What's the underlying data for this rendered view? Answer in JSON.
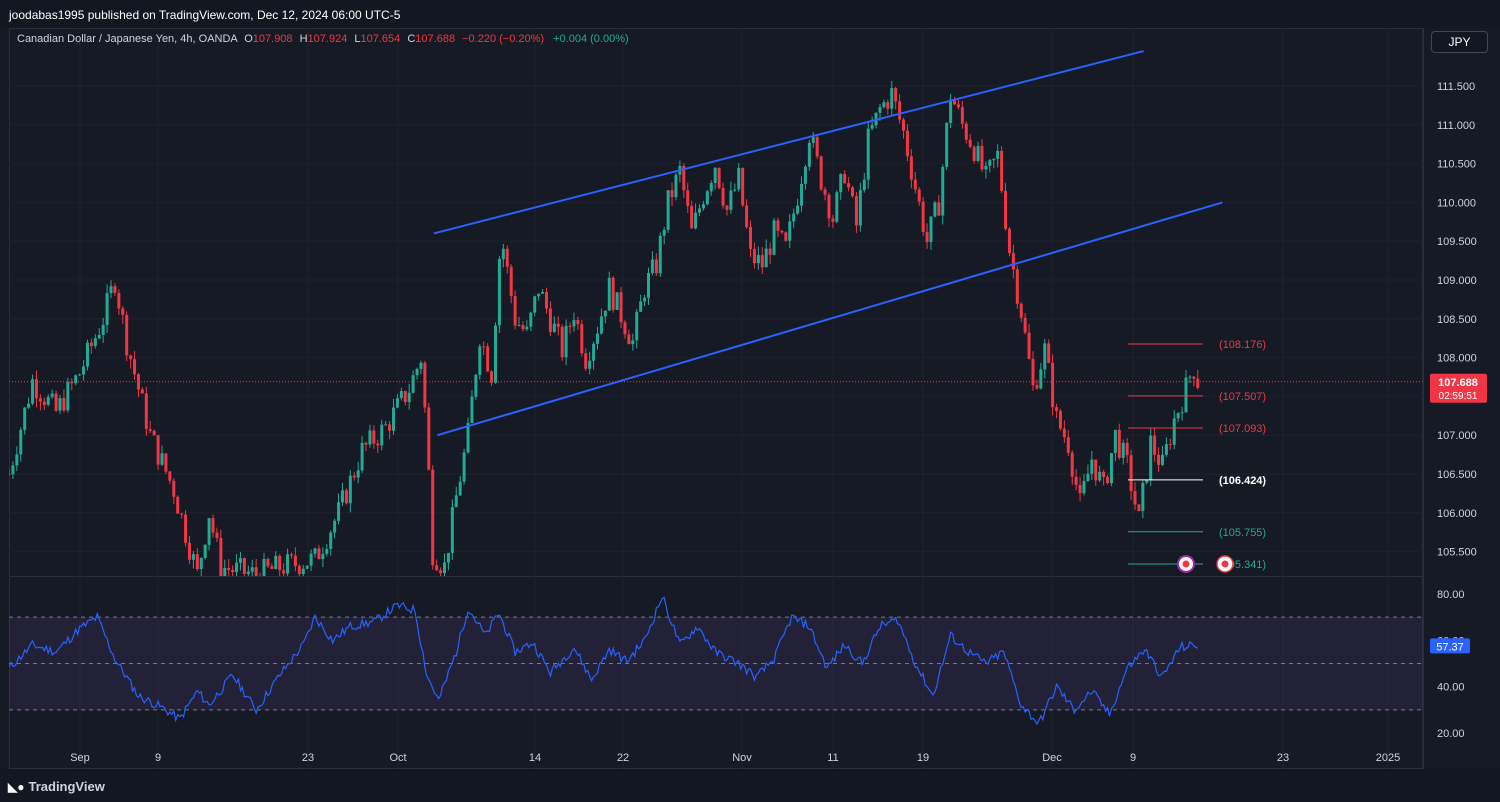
{
  "header": {
    "publisher": "joodabas1995 published on TradingView.com, Dec 12, 2024 06:00 UTC-5"
  },
  "legend": {
    "title": "Canadian Dollar / Japanese Yen, 4h, OANDA",
    "o_label": "O",
    "o_value": "107.908",
    "h_label": "H",
    "h_value": "107.924",
    "l_label": "L",
    "l_value": "107.654",
    "c_label": "C",
    "c_value": "107.688",
    "change": "−0.220 (−0.20%)",
    "extra": "+0.004 (0.00%)"
  },
  "currency_button": "JPY",
  "branding": "TradingView",
  "colors": {
    "bull": "#22ab94",
    "bear": "#f23645",
    "channel": "#2962ff",
    "rsi": "#2962ff",
    "background": "#161a25"
  },
  "chart_data": [
    {
      "type": "candlestick",
      "symbol": "CADJPY",
      "timeframe": "4h",
      "ylim": [
        105.2,
        112.1
      ],
      "price_ticks": [
        "111.500",
        "111.000",
        "110.500",
        "110.000",
        "109.500",
        "109.000",
        "108.500",
        "108.000",
        "107.000",
        "106.500",
        "106.000",
        "105.500"
      ],
      "x_ticks": [
        "Sep",
        "9",
        "23",
        "Oct",
        "14",
        "22",
        "Nov",
        "11",
        "19",
        "Dec",
        "9",
        "23",
        "2025"
      ],
      "last_price": "107.688",
      "countdown": "02:59:51",
      "anchors": [
        {
          "day": 0,
          "price": 106.5
        },
        {
          "day": 2,
          "price": 107.7
        },
        {
          "day": 4,
          "price": 107.3
        },
        {
          "day": 6,
          "price": 107.8
        },
        {
          "day": 8,
          "price": 108.5
        },
        {
          "day": 9,
          "price": 109.0
        },
        {
          "day": 10,
          "price": 108.2
        },
        {
          "day": 11,
          "price": 107.6
        },
        {
          "day": 12,
          "price": 107.0
        },
        {
          "day": 14,
          "price": 106.3
        },
        {
          "day": 16,
          "price": 105.2
        },
        {
          "day": 17,
          "price": 106.0
        },
        {
          "day": 18,
          "price": 105.3
        },
        {
          "day": 21,
          "price": 105.2
        },
        {
          "day": 23,
          "price": 105.3
        },
        {
          "day": 26,
          "price": 105.4
        },
        {
          "day": 28,
          "price": 106.0
        },
        {
          "day": 30,
          "price": 106.8
        },
        {
          "day": 32,
          "price": 107.1
        },
        {
          "day": 34,
          "price": 107.6
        },
        {
          "day": 35,
          "price": 108.0
        },
        {
          "day": 35.5,
          "price": 107.0
        },
        {
          "day": 36,
          "price": 105.5
        },
        {
          "day": 37,
          "price": 105.3
        },
        {
          "day": 38,
          "price": 106.2
        },
        {
          "day": 39,
          "price": 107.0
        },
        {
          "day": 40,
          "price": 108.3
        },
        {
          "day": 41,
          "price": 107.8
        },
        {
          "day": 41.8,
          "price": 109.6
        },
        {
          "day": 43,
          "price": 108.5
        },
        {
          "day": 44,
          "price": 108.3
        },
        {
          "day": 45,
          "price": 108.9
        },
        {
          "day": 47,
          "price": 108.1
        },
        {
          "day": 48,
          "price": 108.6
        },
        {
          "day": 49,
          "price": 108.0
        },
        {
          "day": 50,
          "price": 108.4
        },
        {
          "day": 51,
          "price": 108.9
        },
        {
          "day": 53,
          "price": 108.2
        },
        {
          "day": 54,
          "price": 108.9
        },
        {
          "day": 55,
          "price": 109.2
        },
        {
          "day": 56,
          "price": 110.0
        },
        {
          "day": 57,
          "price": 110.4
        },
        {
          "day": 58,
          "price": 109.6
        },
        {
          "day": 59,
          "price": 110.1
        },
        {
          "day": 60,
          "price": 110.5
        },
        {
          "day": 61,
          "price": 109.9
        },
        {
          "day": 62,
          "price": 110.3
        },
        {
          "day": 63,
          "price": 109.3
        },
        {
          "day": 64,
          "price": 109.2
        },
        {
          "day": 65,
          "price": 109.6
        },
        {
          "day": 66,
          "price": 109.4
        },
        {
          "day": 67,
          "price": 110.1
        },
        {
          "day": 68,
          "price": 110.9
        },
        {
          "day": 69,
          "price": 110.3
        },
        {
          "day": 70,
          "price": 109.8
        },
        {
          "day": 71,
          "price": 110.4
        },
        {
          "day": 72,
          "price": 109.7
        },
        {
          "day": 73,
          "price": 110.8
        },
        {
          "day": 74,
          "price": 111.2
        },
        {
          "day": 75,
          "price": 111.4
        },
        {
          "day": 76,
          "price": 110.9
        },
        {
          "day": 77,
          "price": 110.2
        },
        {
          "day": 78,
          "price": 109.5
        },
        {
          "day": 79,
          "price": 110.0
        },
        {
          "day": 80,
          "price": 111.4
        },
        {
          "day": 81,
          "price": 111.0
        },
        {
          "day": 82,
          "price": 110.7
        },
        {
          "day": 83,
          "price": 110.3
        },
        {
          "day": 84,
          "price": 110.6
        },
        {
          "day": 85,
          "price": 109.4
        },
        {
          "day": 86,
          "price": 108.6
        },
        {
          "day": 87,
          "price": 107.6
        },
        {
          "day": 88,
          "price": 108.1
        },
        {
          "day": 89,
          "price": 107.2
        },
        {
          "day": 90,
          "price": 106.9
        },
        {
          "day": 91,
          "price": 106.1
        },
        {
          "day": 92,
          "price": 106.7
        },
        {
          "day": 93,
          "price": 106.3
        },
        {
          "day": 94,
          "price": 107.0
        },
        {
          "day": 95,
          "price": 106.6
        },
        {
          "day": 96,
          "price": 105.9
        },
        {
          "day": 97,
          "price": 106.9
        },
        {
          "day": 98,
          "price": 106.6
        },
        {
          "day": 99,
          "price": 107.2
        },
        {
          "day": 100,
          "price": 107.6
        },
        {
          "day": 100.6,
          "price": 107.9
        },
        {
          "day": 101,
          "price": 107.7
        }
      ],
      "channel_upper": [
        {
          "day": 36.1,
          "price": 109.6
        },
        {
          "day": 96.4,
          "price": 111.95
        }
      ],
      "channel_lower": [
        {
          "day": 36.4,
          "price": 107.0
        },
        {
          "day": 103.1,
          "price": 110.0
        }
      ],
      "levels": [
        {
          "label": "(108.176)",
          "price": 108.176,
          "color": "#f23645"
        },
        {
          "label": "(107.507)",
          "price": 107.507,
          "color": "#f23645"
        },
        {
          "label": "(107.093)",
          "price": 107.093,
          "color": "#f23645"
        },
        {
          "label": "(106.424)",
          "price": 106.424,
          "color": "#ffffff"
        },
        {
          "label": "(105.755)",
          "price": 105.755,
          "color": "#22ab94"
        },
        {
          "label": "(105.341)",
          "price": 105.341,
          "color": "#22ab94"
        }
      ]
    },
    {
      "type": "line",
      "indicator": "RSI",
      "ylim": [
        18,
        82
      ],
      "y_ticks": [
        "80.00",
        "60.00",
        "40.00",
        "20.00"
      ],
      "bands": [
        70,
        50,
        30
      ],
      "last_value": "57.37",
      "anchors": [
        {
          "day": 0,
          "value": 48
        },
        {
          "day": 2,
          "value": 58
        },
        {
          "day": 4,
          "value": 55
        },
        {
          "day": 6,
          "value": 65
        },
        {
          "day": 7.5,
          "value": 70
        },
        {
          "day": 9,
          "value": 52
        },
        {
          "day": 11,
          "value": 36
        },
        {
          "day": 13,
          "value": 31
        },
        {
          "day": 14.5,
          "value": 26
        },
        {
          "day": 16,
          "value": 38
        },
        {
          "day": 17,
          "value": 32
        },
        {
          "day": 19,
          "value": 45
        },
        {
          "day": 21,
          "value": 30
        },
        {
          "day": 23,
          "value": 45
        },
        {
          "day": 25,
          "value": 58
        },
        {
          "day": 26,
          "value": 70
        },
        {
          "day": 27.5,
          "value": 60
        },
        {
          "day": 29,
          "value": 66
        },
        {
          "day": 31,
          "value": 68
        },
        {
          "day": 33,
          "value": 75
        },
        {
          "day": 34.5,
          "value": 73
        },
        {
          "day": 35.5,
          "value": 45
        },
        {
          "day": 36.5,
          "value": 34
        },
        {
          "day": 38,
          "value": 55
        },
        {
          "day": 39,
          "value": 74
        },
        {
          "day": 40.5,
          "value": 62
        },
        {
          "day": 41.6,
          "value": 72
        },
        {
          "day": 43,
          "value": 55
        },
        {
          "day": 44.5,
          "value": 59
        },
        {
          "day": 46,
          "value": 46
        },
        {
          "day": 48,
          "value": 57
        },
        {
          "day": 49.5,
          "value": 43
        },
        {
          "day": 51,
          "value": 56
        },
        {
          "day": 52.5,
          "value": 51
        },
        {
          "day": 54,
          "value": 60
        },
        {
          "day": 55.5,
          "value": 79
        },
        {
          "day": 57,
          "value": 58
        },
        {
          "day": 58.5,
          "value": 66
        },
        {
          "day": 60,
          "value": 55
        },
        {
          "day": 62,
          "value": 50
        },
        {
          "day": 63.5,
          "value": 44
        },
        {
          "day": 65,
          "value": 52
        },
        {
          "day": 66.5,
          "value": 70
        },
        {
          "day": 68,
          "value": 66
        },
        {
          "day": 69.5,
          "value": 48
        },
        {
          "day": 71,
          "value": 58
        },
        {
          "day": 72.5,
          "value": 50
        },
        {
          "day": 74,
          "value": 66
        },
        {
          "day": 75.5,
          "value": 69
        },
        {
          "day": 77,
          "value": 50
        },
        {
          "day": 78.5,
          "value": 36
        },
        {
          "day": 80,
          "value": 62
        },
        {
          "day": 81.5,
          "value": 55
        },
        {
          "day": 83,
          "value": 50
        },
        {
          "day": 84.5,
          "value": 55
        },
        {
          "day": 86,
          "value": 32
        },
        {
          "day": 87.5,
          "value": 24
        },
        {
          "day": 89,
          "value": 40
        },
        {
          "day": 90.5,
          "value": 30
        },
        {
          "day": 92,
          "value": 38
        },
        {
          "day": 93.5,
          "value": 28
        },
        {
          "day": 95,
          "value": 48
        },
        {
          "day": 96.5,
          "value": 56
        },
        {
          "day": 98,
          "value": 44
        },
        {
          "day": 99.5,
          "value": 57
        },
        {
          "day": 101,
          "value": 58
        }
      ]
    }
  ]
}
